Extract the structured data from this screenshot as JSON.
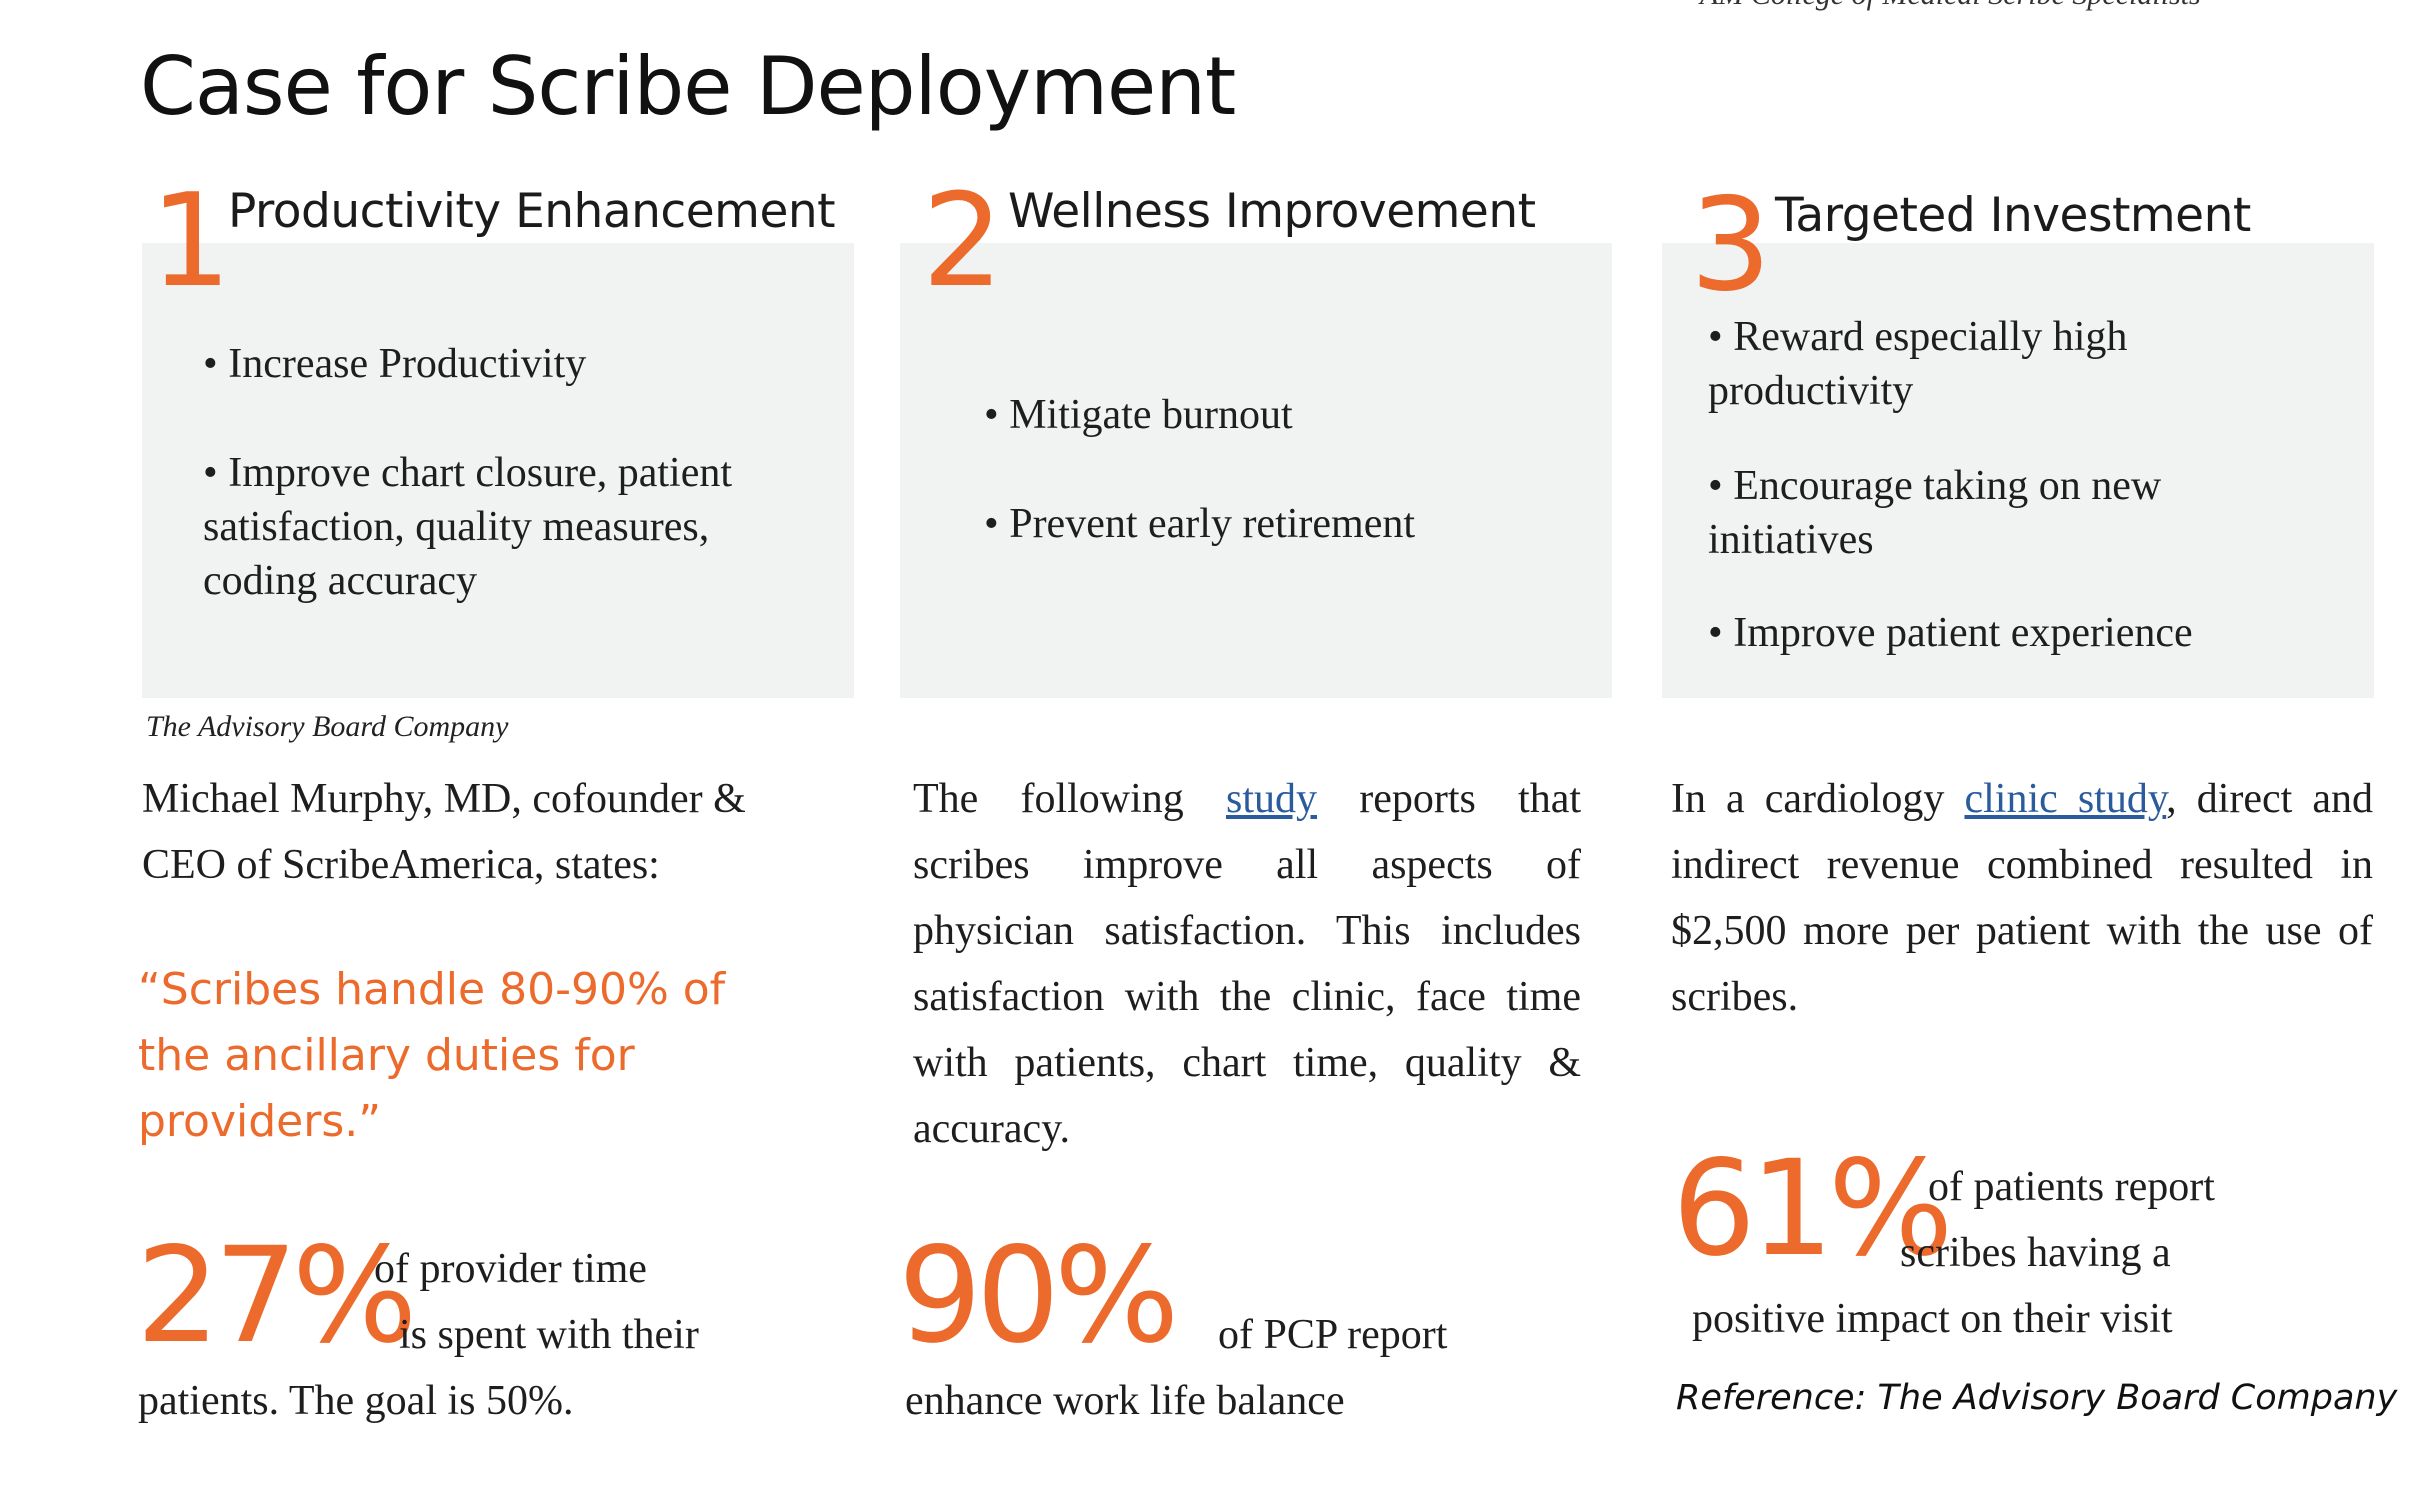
{
  "header": {
    "note": "AM College of Medical Scribe Specialists",
    "title": "Case for Scribe Deployment"
  },
  "columns": [
    {
      "number": "1",
      "title": "Productivity Enhancement",
      "bullets": [
        "• Increase Productivity",
        "• Improve chart closure, patient satisfaction, quality measures, coding accuracy"
      ],
      "source": "The Advisory Board Company",
      "intro": "Michael Murphy, MD, cofounder & CEO of ScribeAmerica, states:",
      "quote": "“Scribes handle 80-90% of the ancillary duties for providers.”",
      "stat_value": "27%",
      "stat_text_1": "of provider time",
      "stat_text_2": "is spent with their",
      "stat_text_3": "patients. The goal is 50%."
    },
    {
      "number": "2",
      "title": "Wellness Improvement",
      "bullets": [
        "• Mitigate burnout",
        "• Prevent early retirement"
      ],
      "text_before_link": "The following",
      "link": "study",
      "text_after_link": "reports that scribes improve all aspects of physician satisfaction. This includes satisfaction with the clinic, face time with patients, chart time, quality & accuracy.",
      "stat_value": "90%",
      "stat_text_1": "of PCP report",
      "stat_text_2": "enhance work life balance"
    },
    {
      "number": "3",
      "title": "Targeted Investment",
      "bullets": [
        "• Reward especially high productivity",
        "• Encourage taking on new initiatives",
        "•  Improve patient experience"
      ],
      "text_before_link": "In a cardiology",
      "link": "clinic study",
      "text_after_link": ", direct and indirect revenue combined resulted in $2,500 more per patient with the use of scribes.",
      "stat_value": "61%",
      "stat_text_1": "of patients report",
      "stat_text_2": "scribes having a",
      "stat_text_3": "positive impact on their visit",
      "reference": "Reference: The Advisory Board Company"
    }
  ],
  "colors": {
    "accent": "#ec6a2c",
    "box": "#f1f2f2",
    "link": "#2a5b9c"
  }
}
